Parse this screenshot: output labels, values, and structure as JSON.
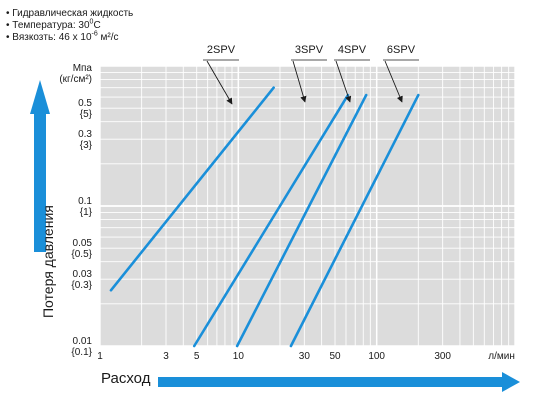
{
  "notes": [
    {
      "text": "• Гидравлическая жидкость"
    },
    {
      "text": "• Температура: 30",
      "sup": "0",
      "after": "C"
    },
    {
      "text": "• Вязкозть: 46 x 10",
      "sup": "-6",
      "after": " м²/с"
    }
  ],
  "colors": {
    "series": "#1a8fd9",
    "arrow": "#1a8fd9",
    "plot_bg": "#dcdcdc",
    "grid": "#ffffff"
  },
  "chart_data": {
    "type": "line",
    "xlabel": "Расход",
    "ylabel": "Потеря давления",
    "x_scale": "log",
    "y_scale": "log",
    "xlim": [
      1,
      1000
    ],
    "ylim": [
      0.01,
      1
    ],
    "grid": true,
    "x_ticks": [
      {
        "value": 1,
        "label": "1"
      },
      {
        "value": 3,
        "label": "3"
      },
      {
        "value": 5,
        "label": "5"
      },
      {
        "value": 10,
        "label": "10"
      },
      {
        "value": 30,
        "label": "30"
      },
      {
        "value": 50,
        "label": "50"
      },
      {
        "value": 100,
        "label": "100"
      },
      {
        "value": 300,
        "label": "300"
      },
      {
        "value": 800,
        "label": "л/мин"
      }
    ],
    "y_ticks": [
      {
        "value": 1,
        "label": "Mпа",
        "sub": "(кг/см²)"
      },
      {
        "value": 0.5,
        "label": "0.5",
        "sub": "{5}"
      },
      {
        "value": 0.3,
        "label": "0.3",
        "sub": "{3}"
      },
      {
        "value": 0.1,
        "label": "0.1",
        "sub": "{1}"
      },
      {
        "value": 0.05,
        "label": "0.05",
        "sub": "{0.5}"
      },
      {
        "value": 0.03,
        "label": "0.03",
        "sub": "{0.3}"
      },
      {
        "value": 0.01,
        "label": "0.01",
        "sub": "{0.1}"
      }
    ],
    "series": [
      {
        "name": "2SPV",
        "points": [
          [
            1.2,
            0.025
          ],
          [
            18,
            0.7
          ]
        ]
      },
      {
        "name": "3SPV",
        "points": [
          [
            4.8,
            0.01
          ],
          [
            62,
            0.62
          ]
        ]
      },
      {
        "name": "4SPV",
        "points": [
          [
            9.8,
            0.01
          ],
          [
            84,
            0.62
          ]
        ]
      },
      {
        "name": "6SPV",
        "points": [
          [
            24,
            0.01
          ],
          [
            200,
            0.62
          ]
        ]
      }
    ],
    "legend": "callouts above plot with arrows"
  }
}
